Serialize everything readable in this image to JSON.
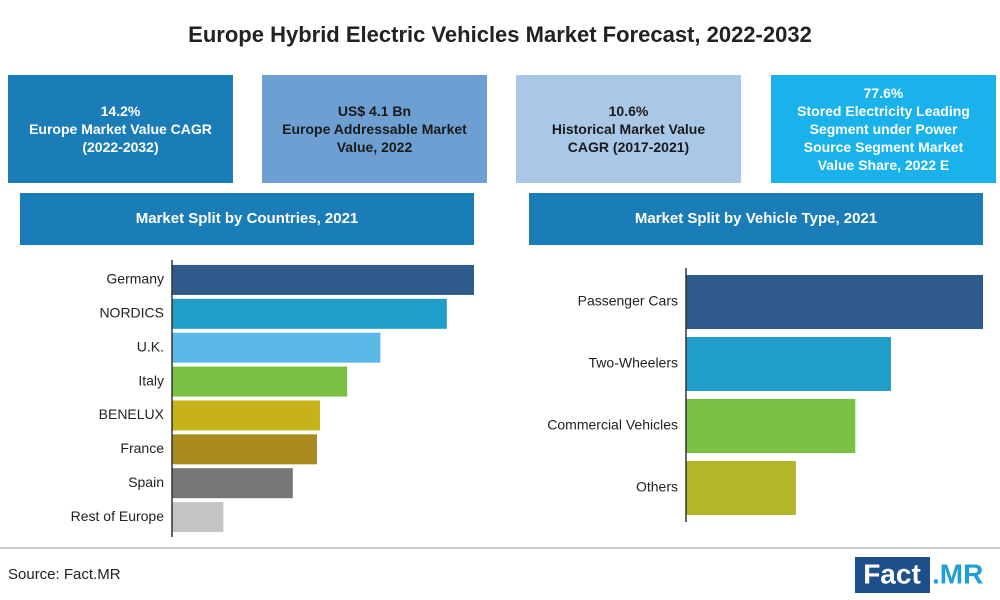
{
  "header": {
    "title": "Europe Hybrid Electric Vehicles Market Forecast, 2022-2032"
  },
  "kpis": [
    {
      "lines": [
        "14.2%",
        "Europe Market Value CAGR",
        "(2022-2032)"
      ]
    },
    {
      "lines": [
        "US$ 4.1 Bn",
        "Europe Addressable Market",
        "Value, 2022"
      ]
    },
    {
      "lines": [
        "10.6%",
        "Historical Market Value",
        "CAGR (2017-2021)"
      ]
    },
    {
      "lines": [
        "77.6%",
        "Stored Electricity Leading",
        "Segment under Power",
        "Source Segment Market",
        "Value Share, 2022 E"
      ]
    }
  ],
  "chart_data": [
    {
      "type": "bar",
      "title": "Market Split by Countries, 2021",
      "categories": [
        "Germany",
        "NORDICS",
        "U.K.",
        "Italy",
        "BENELUX",
        "France",
        "Spain",
        "Rest of Europe"
      ],
      "values": [
        100,
        91,
        69,
        58,
        49,
        48,
        40,
        17
      ],
      "colors": [
        "#2e5b8c",
        "#1f9ec8",
        "#5bb8e8",
        "#7ac143",
        "#c8b21a",
        "#a88a1e",
        "#767676",
        "#c4c4c4"
      ],
      "xlim": [
        0,
        100
      ]
    },
    {
      "type": "bar",
      "title": "Market Split by Vehicle Type, 2021",
      "categories": [
        "Passenger Cars",
        "Two-Wheelers",
        "Commercial Vehicles",
        "Others"
      ],
      "values": [
        100,
        69,
        57,
        37
      ],
      "colors": [
        "#2e5b8c",
        "#1f9ec8",
        "#7ac143",
        "#b5b52a"
      ],
      "xlim": [
        0,
        100
      ]
    }
  ],
  "footer": {
    "source": "Source: Fact.MR",
    "logo_left": "Fact",
    "logo_right": ".MR"
  }
}
